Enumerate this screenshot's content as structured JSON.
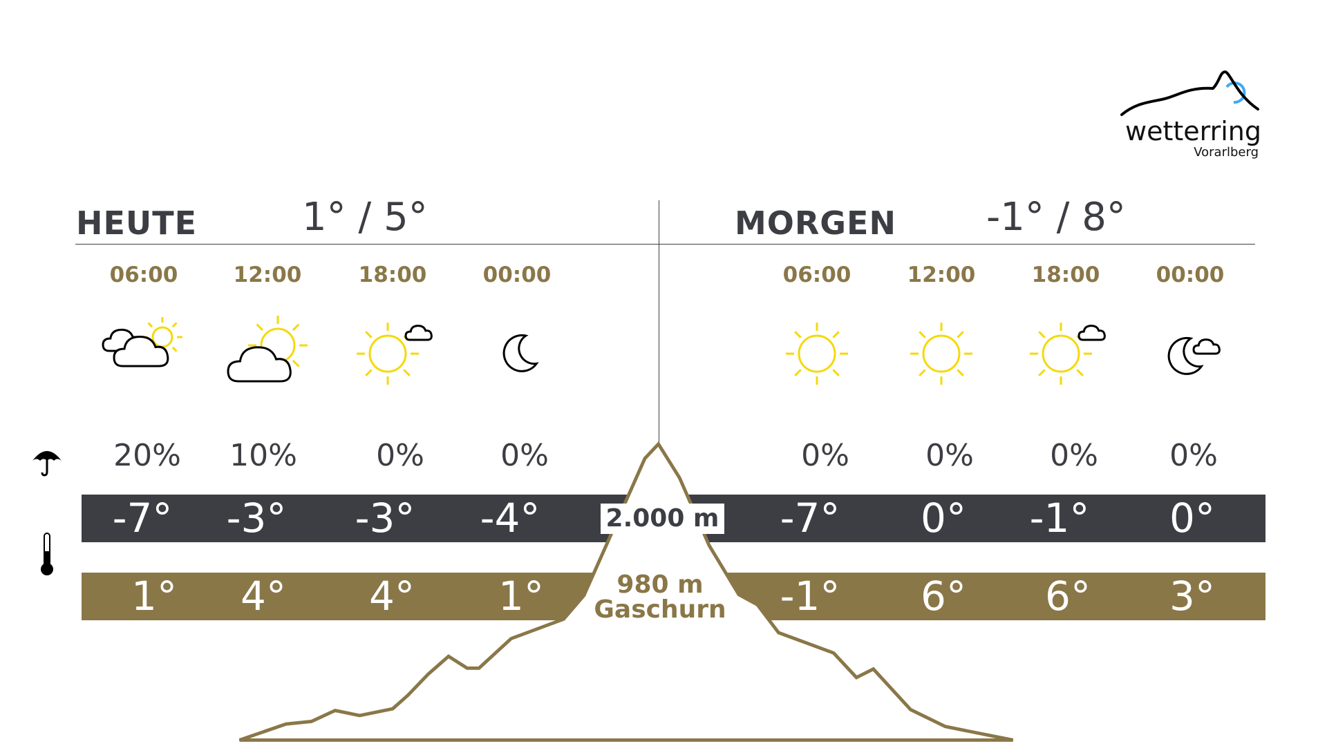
{
  "logo": {
    "name": "wetterring",
    "region": "Vorarlberg",
    "accent": "#3fa9f5"
  },
  "colors": {
    "dark": "#3d3e44",
    "gold": "#8a7748",
    "sun": "#f5d90a"
  },
  "today": {
    "label": "HEUTE",
    "range": "1° / 5°",
    "slots": [
      {
        "time": "06:00",
        "icon": "cloud-sun",
        "precip": "20%",
        "temp_mountain": "-7°",
        "temp_valley": "1°"
      },
      {
        "time": "12:00",
        "icon": "cloud-sun-large",
        "precip": "10%",
        "temp_mountain": "-3°",
        "temp_valley": "4°"
      },
      {
        "time": "18:00",
        "icon": "sun-small-cloud",
        "precip": "0%",
        "temp_mountain": "-3°",
        "temp_valley": "4°"
      },
      {
        "time": "00:00",
        "icon": "moon",
        "precip": "0%",
        "temp_mountain": "-4°",
        "temp_valley": "1°"
      }
    ]
  },
  "tomorrow": {
    "label": "MORGEN",
    "range": "-1° / 8°",
    "slots": [
      {
        "time": "06:00",
        "icon": "sun",
        "precip": "0%",
        "temp_mountain": "-7°",
        "temp_valley": "-1°"
      },
      {
        "time": "12:00",
        "icon": "sun",
        "precip": "0%",
        "temp_mountain": "0°",
        "temp_valley": "6°"
      },
      {
        "time": "18:00",
        "icon": "sun-small-cloud",
        "precip": "0%",
        "temp_mountain": "-1°",
        "temp_valley": "6°"
      },
      {
        "time": "00:00",
        "icon": "moon-cloud",
        "precip": "0%",
        "temp_mountain": "0°",
        "temp_valley": "3°"
      }
    ]
  },
  "legend": {
    "precip_icon": "umbrella-icon",
    "temp_icon": "thermometer-icon"
  },
  "mountain": {
    "altitude": "2.000 m",
    "valley_altitude": "980 m",
    "valley_name": "Gaschurn"
  }
}
